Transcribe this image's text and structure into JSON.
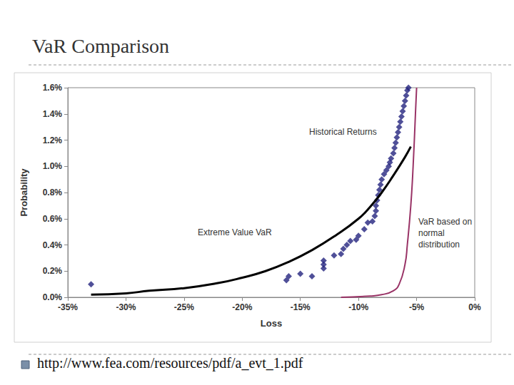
{
  "chart_data": {
    "type": "scatter",
    "title": "VaR Comparison",
    "source": "http://www.fea.com/resources/pdf/a_evt_1.pdf",
    "x_label": "Loss",
    "y_label": "Probability",
    "xlim": [
      -35,
      0
    ],
    "xticks": [
      {
        "value": -35,
        "label": "-35%"
      },
      {
        "value": -30,
        "label": "-30%"
      },
      {
        "value": -25,
        "label": "-25%"
      },
      {
        "value": -20,
        "label": "-20%"
      },
      {
        "value": -15,
        "label": "-15%"
      },
      {
        "value": -10,
        "label": "-10%"
      },
      {
        "value": -5,
        "label": "-5%"
      },
      {
        "value": 0,
        "label": "0%"
      }
    ],
    "ylim": [
      0,
      1.6
    ],
    "yticks": [
      {
        "value": 0,
        "label": "0.0%"
      },
      {
        "value": 0.2,
        "label": "0.2%"
      },
      {
        "value": 0.4,
        "label": "0.4%"
      },
      {
        "value": 0.6,
        "label": "0.6%"
      },
      {
        "value": 0.8,
        "label": "0.8%"
      },
      {
        "value": 1.0,
        "label": "1.0%"
      },
      {
        "value": 1.2,
        "label": "1.2%"
      },
      {
        "value": 1.4,
        "label": "1.4%"
      },
      {
        "value": 1.6,
        "label": "1.6%"
      }
    ],
    "grid": false,
    "series": [
      {
        "name": "Historical Returns",
        "type": "scatter",
        "marker": "diamond",
        "color": "#23237e",
        "x": [
          -33.0,
          -16.2,
          -16.0,
          -15.0,
          -14.0,
          -13.0,
          -13.0,
          -13.0,
          -12.1,
          -11.5,
          -11.3,
          -11.0,
          -10.7,
          -10.2,
          -10.0,
          -9.5,
          -9.2,
          -8.8,
          -8.6,
          -8.5,
          -8.5,
          -8.4,
          -8.3,
          -8.2,
          -8.1,
          -8.0,
          -7.8,
          -7.6,
          -7.4,
          -7.3,
          -7.2,
          -7.0,
          -6.9,
          -6.8,
          -6.7,
          -6.6,
          -6.5,
          -6.4,
          -6.3,
          -6.2,
          -6.1,
          -6.0,
          -5.9,
          -5.8,
          -5.7
        ],
        "values": [
          0.1,
          0.13,
          0.16,
          0.18,
          0.16,
          0.22,
          0.25,
          0.28,
          0.32,
          0.33,
          0.37,
          0.4,
          0.43,
          0.44,
          0.47,
          0.52,
          0.57,
          0.58,
          0.62,
          0.66,
          0.7,
          0.74,
          0.78,
          0.82,
          0.86,
          0.9,
          0.94,
          0.97,
          1.0,
          1.03,
          1.06,
          1.1,
          1.14,
          1.18,
          1.22,
          1.26,
          1.3,
          1.34,
          1.38,
          1.42,
          1.46,
          1.5,
          1.54,
          1.58,
          1.6
        ]
      },
      {
        "name": "Extreme Value VaR",
        "type": "line",
        "line_style": "solid",
        "color": "#000000",
        "x": [
          -33,
          -30,
          -28,
          -25,
          -22,
          -20,
          -18,
          -16,
          -14,
          -12,
          -10,
          -9,
          -8,
          -7,
          -6,
          -5.5
        ],
        "values": [
          0.02,
          0.03,
          0.05,
          0.07,
          0.11,
          0.15,
          0.2,
          0.27,
          0.36,
          0.47,
          0.6,
          0.69,
          0.8,
          0.93,
          1.07,
          1.15
        ]
      },
      {
        "name": "VaR based on normal distribution",
        "type": "line",
        "line_style": "solid",
        "color": "#993366",
        "x": [
          -11.5,
          -9,
          -8,
          -7,
          -6.5,
          -6,
          -5.8,
          -5.5,
          -5.3,
          -5.1,
          -5.0
        ],
        "values": [
          0.0,
          0.01,
          0.02,
          0.05,
          0.1,
          0.25,
          0.4,
          0.7,
          1.0,
          1.4,
          1.6
        ]
      }
    ]
  }
}
